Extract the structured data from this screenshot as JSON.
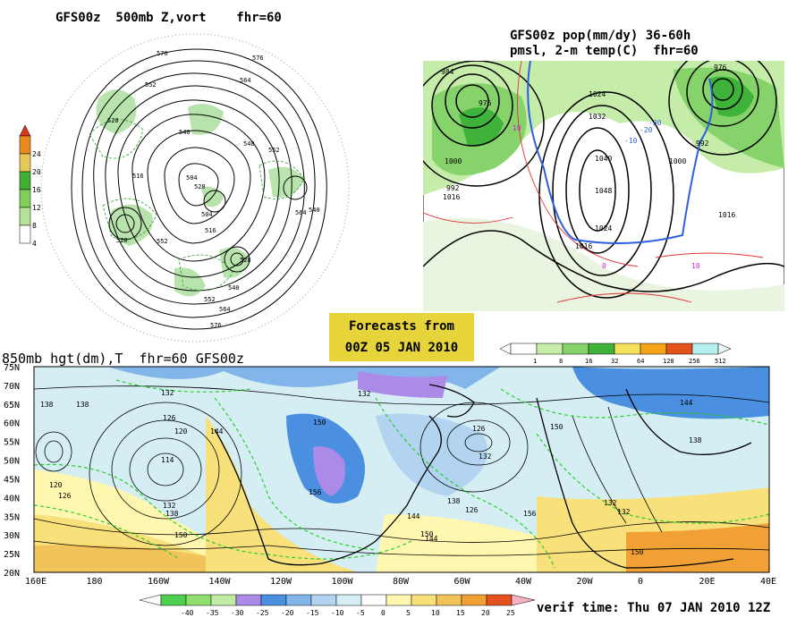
{
  "panels": {
    "hemispheric": {
      "title": "GFS00z  500mb Z,vort    fhr=60",
      "contour_labels": [
        "576",
        "576",
        "552",
        "564",
        "528",
        "540",
        "540",
        "504",
        "516",
        "528",
        "552",
        "504",
        "540",
        "552",
        "528",
        "564",
        "516",
        "528",
        "552",
        "564",
        "540",
        "576"
      ],
      "colorbar": {
        "ticks": [
          "4",
          "8",
          "12",
          "16",
          "20",
          "24"
        ],
        "colors": [
          "#ffffff",
          "#b6e39a",
          "#7fcf5a",
          "#3fae33",
          "#e8c75a",
          "#e88b1f",
          "#d9371a"
        ]
      }
    },
    "precip": {
      "title_line1": "GFS00z pop(mm/dy) 36-60h",
      "title_line2": "pmsl, 2-m temp(C)  fhr=60",
      "labels": [
        "984",
        "976",
        "992",
        "1000",
        "1016",
        "1024",
        "1032",
        "1040",
        "1048",
        "1024",
        "1016",
        "1000",
        "992",
        "1016",
        "976",
        "10",
        "10",
        "0",
        "-10",
        "-20",
        "-30"
      ],
      "colorbar": {
        "ticks": [
          "1",
          "8",
          "16",
          "32",
          "64",
          "128",
          "256",
          "512"
        ],
        "colors": [
          "#ffffff",
          "#c6ecaa",
          "#86d36b",
          "#3fb23a",
          "#f5e15c",
          "#f3a318",
          "#e4531b",
          "#b6f0f0",
          "#e8f6f6"
        ]
      }
    },
    "forecast_box": {
      "line1": "Forecasts from",
      "line2": "00Z 05 JAN 2010"
    },
    "regional": {
      "title": "850mb hgt(dm),T  fhr=60 GFS00z",
      "lat_labels": [
        "75N",
        "70N",
        "65N",
        "60N",
        "55N",
        "50N",
        "45N",
        "40N",
        "35N",
        "30N",
        "25N",
        "20N"
      ],
      "lon_labels": [
        "160E",
        "180",
        "160W",
        "140W",
        "120W",
        "100W",
        "80W",
        "60W",
        "40W",
        "20W",
        "0",
        "20E",
        "40E"
      ],
      "height_labels": [
        "138",
        "132",
        "126",
        "120",
        "114",
        "126",
        "132",
        "138",
        "150",
        "144",
        "156",
        "150",
        "132",
        "126",
        "132",
        "138",
        "144",
        "120",
        "150",
        "156",
        "132",
        "150",
        "144",
        "138",
        "132",
        "126",
        "138",
        "144",
        "150"
      ],
      "temp_colorbar": {
        "ticks": [
          "-40",
          "-35",
          "-30",
          "-25",
          "-20",
          "-15",
          "-10",
          "-5",
          "0",
          "5",
          "10",
          "15",
          "20",
          "25"
        ],
        "colors": [
          "#4fcf4f",
          "#8fdf6f",
          "#c2eca6",
          "#ab8ae8",
          "#4a8fe0",
          "#82b6ea",
          "#b2d4f0",
          "#d4eef4",
          "#ffffff",
          "#fff6b0",
          "#f8e07a",
          "#f2c35a",
          "#f0a034",
          "#e4501e",
          "#f4b2c0"
        ]
      },
      "verif_time": "verif time: Thu 07 JAN 2010 12Z"
    }
  }
}
